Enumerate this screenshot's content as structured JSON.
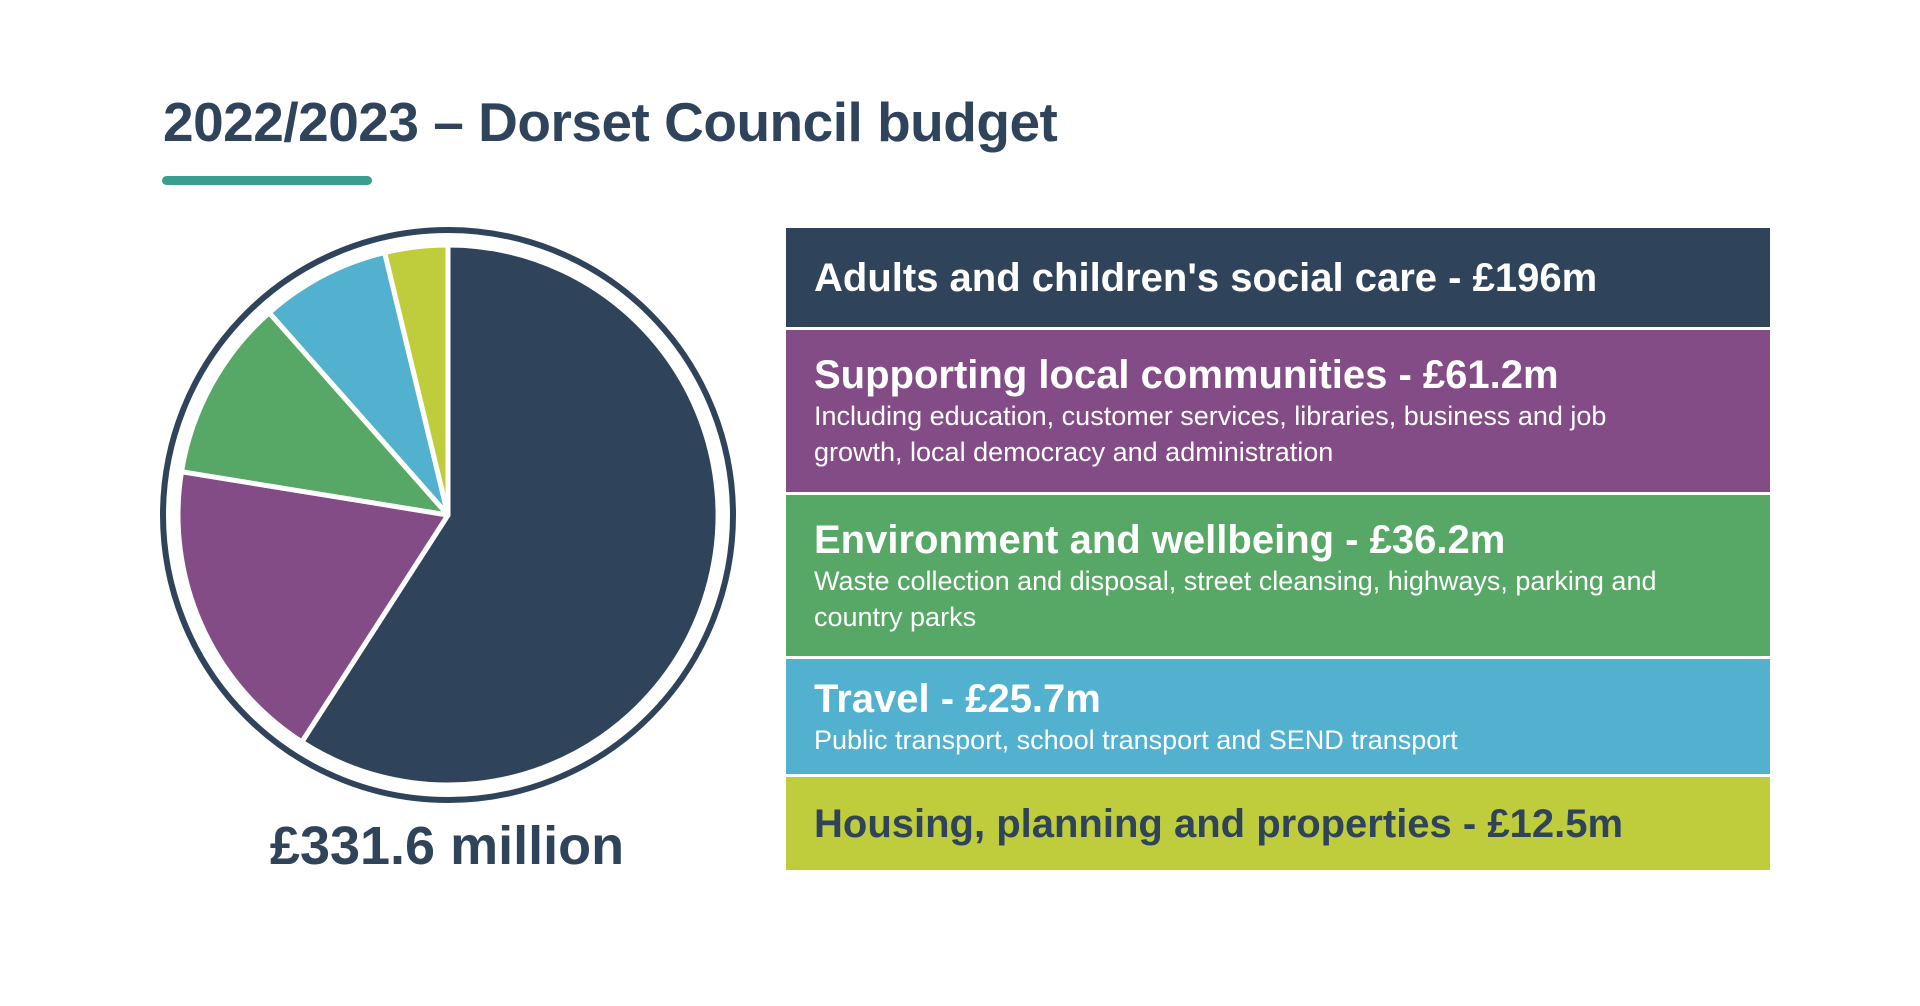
{
  "title": "2022/2023 – Dorset Council budget",
  "total_label": "£331.6 million",
  "legend": [
    {
      "heading": "Adults and children's social care - £196m",
      "description": "",
      "color": "#2f445b",
      "text_color": "#ffffff"
    },
    {
      "heading": "Supporting local communities - £61.2m",
      "description": "Including education, customer services, libraries, business and job growth, local democracy and administration",
      "color": "#834c87",
      "text_color": "#ffffff"
    },
    {
      "heading": "Environment and wellbeing - £36.2m",
      "description": "Waste collection and disposal, street cleansing, highways, parking and country parks",
      "color": "#57a866",
      "text_color": "#ffffff"
    },
    {
      "heading": "Travel - £25.7m",
      "description": "Public transport, school transport and SEND transport",
      "color": "#53b1d0",
      "text_color": "#ffffff"
    },
    {
      "heading": "Housing, planning and properties - £12.5m",
      "description": "",
      "color": "#bfcd3c",
      "text_color": "#2f445b"
    }
  ],
  "chart_data": {
    "type": "pie",
    "title": "2022/2023 – Dorset Council budget",
    "total": 331.6,
    "unit": "£m",
    "categories": [
      "Adults and children's social care",
      "Supporting local communities",
      "Environment and wellbeing",
      "Travel",
      "Housing, planning and properties"
    ],
    "values": [
      196,
      61.2,
      36.2,
      25.7,
      12.5
    ],
    "colors": [
      "#2f445b",
      "#834c87",
      "#57a866",
      "#53b1d0",
      "#bfcd3c"
    ],
    "start_angle": "12 o'clock",
    "direction": "clockwise",
    "outline_color": "#2f445b"
  }
}
